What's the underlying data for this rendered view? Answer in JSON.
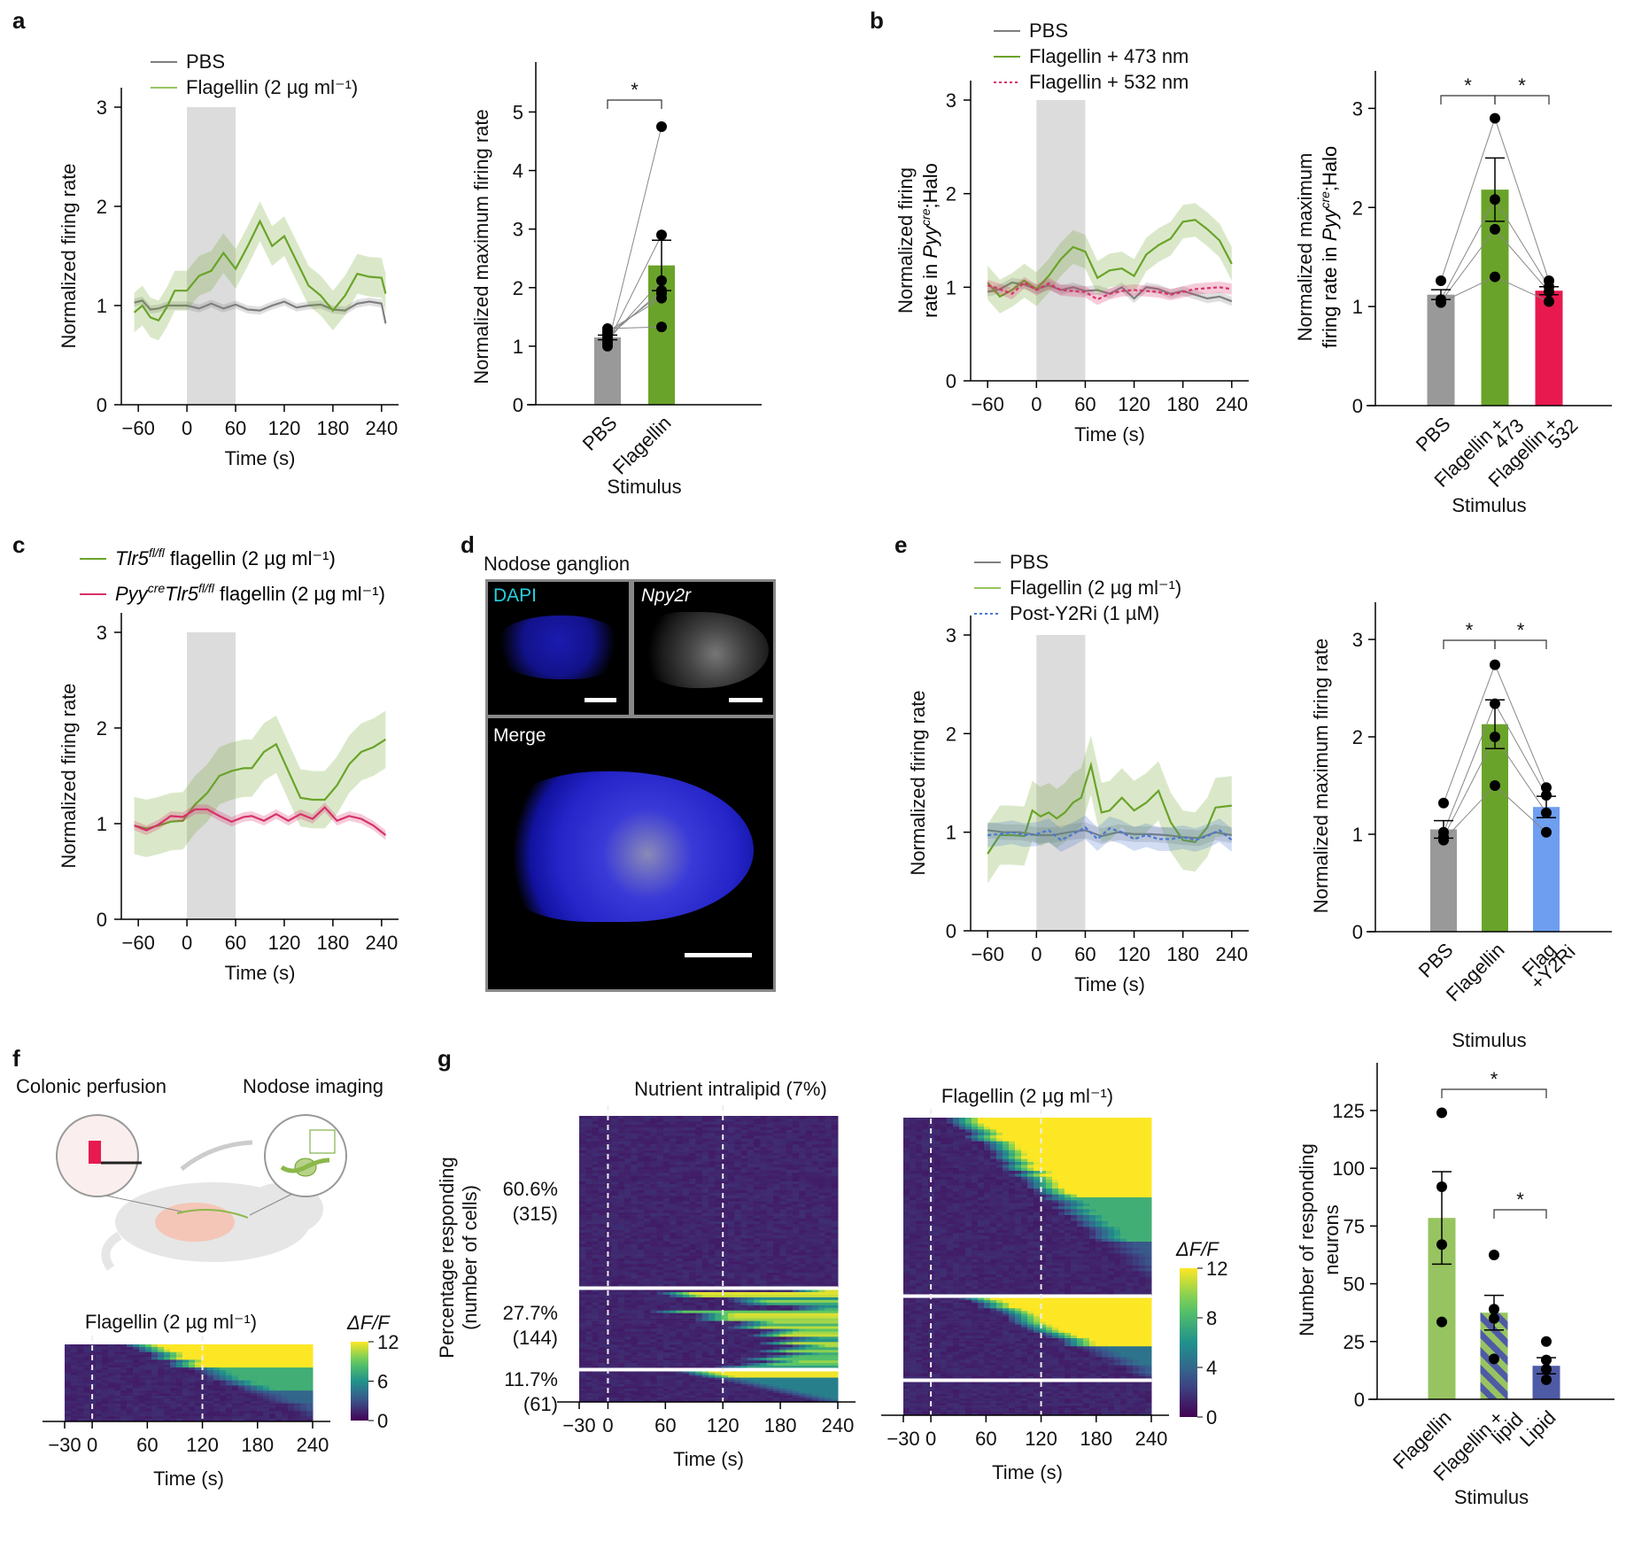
{
  "figure": {
    "panel_letters": [
      "a",
      "b",
      "c",
      "d",
      "e",
      "f",
      "g"
    ]
  },
  "colors": {
    "pbs": "#7f7f7f",
    "pbs_bar": "#999999",
    "flagellin": "#6aa329",
    "flagellin_light": "#97c460",
    "red": "#e8194f",
    "pink": "#d8316a",
    "blue_bar": "#6e9ef0",
    "blue_line": "#4a78d0",
    "lipid": "#4f5aa5",
    "stim_shade": "#dcdcdc"
  },
  "chart_data": [
    {
      "id": "a-left",
      "type": "line",
      "panel": "a",
      "xlabel": "Time (s)",
      "ylabel": "Normalized firing rate",
      "xlim": [
        -70,
        250
      ],
      "ylim": [
        0,
        3
      ],
      "xticks": [
        -60,
        0,
        60,
        120,
        180,
        240
      ],
      "yticks": [
        0,
        1,
        2,
        3
      ],
      "xtick_labels": [
        "−60",
        "0",
        "60",
        "120",
        "180",
        "240"
      ],
      "stimulus_window": [
        0,
        60
      ],
      "legend": [
        "PBS",
        "Flagellin (2 µg ml⁻¹)"
      ],
      "legend_position": "top",
      "series": [
        {
          "name": "PBS",
          "x": [
            -65,
            -55,
            -45,
            -35,
            -25,
            -15,
            0,
            15,
            30,
            45,
            60,
            75,
            90,
            105,
            120,
            135,
            150,
            165,
            180,
            195,
            210,
            225,
            240,
            245
          ],
          "y": [
            1.03,
            1.05,
            0.96,
            0.97,
            1.0,
            1.0,
            1.0,
            0.97,
            1.02,
            0.97,
            1.01,
            0.96,
            0.95,
            1.0,
            1.04,
            0.98,
            1.0,
            1.01,
            0.96,
            0.95,
            1.02,
            1.04,
            1.02,
            0.82
          ],
          "err": 0.04
        },
        {
          "name": "Flagellin (2 µg ml⁻¹)",
          "x": [
            -65,
            -55,
            -45,
            -35,
            -25,
            -15,
            0,
            15,
            30,
            45,
            60,
            75,
            90,
            105,
            120,
            135,
            150,
            165,
            180,
            195,
            210,
            225,
            240,
            245
          ],
          "y": [
            0.93,
            1.0,
            0.88,
            0.85,
            0.98,
            1.15,
            1.15,
            1.3,
            1.35,
            1.53,
            1.37,
            1.6,
            1.85,
            1.6,
            1.7,
            1.45,
            1.2,
            1.1,
            0.95,
            1.1,
            1.32,
            1.29,
            1.28,
            1.12
          ],
          "err": 0.2
        }
      ]
    },
    {
      "id": "a-right",
      "type": "bar",
      "panel": "a",
      "categories": [
        "PBS",
        "Flagellin"
      ],
      "values": [
        1.15,
        2.38
      ],
      "sem": [
        0.04,
        0.43
      ],
      "points": [
        [
          1.0,
          1.05,
          1.1,
          1.15,
          1.2,
          1.25,
          1.3
        ],
        [
          4.75,
          2.9,
          2.12,
          1.95,
          1.9,
          1.82,
          1.33
        ]
      ],
      "xlabel": "Stimulus",
      "ylabel": "Normalized maximum firing rate",
      "ylim": [
        0,
        5.4
      ],
      "yticks": [
        0,
        1,
        2,
        3,
        4,
        5
      ],
      "significance": [
        {
          "pair": [
            0,
            1
          ],
          "label": "*"
        }
      ]
    },
    {
      "id": "b-left",
      "type": "line",
      "panel": "b",
      "xlabel": "Time (s)",
      "ylabel_line1": "Normalized firing",
      "ylabel_line2_prefix": "rate in ",
      "ylabel_italic": "Pyy",
      "ylabel_sup": "cre",
      "ylabel_suffix": ";Halo",
      "xlim": [
        -70,
        250
      ],
      "ylim": [
        0,
        3
      ],
      "xticks": [
        -60,
        0,
        60,
        120,
        180,
        240
      ],
      "yticks": [
        0,
        1,
        2,
        3
      ],
      "xtick_labels": [
        "−60",
        "0",
        "60",
        "120",
        "180",
        "240"
      ],
      "stimulus_window": [
        0,
        60
      ],
      "legend": [
        "PBS",
        "Flagellin + 473 nm",
        "Flagellin + 532 nm"
      ],
      "legend_position": "top",
      "series": [
        {
          "name": "PBS",
          "x": [
            -60,
            -45,
            -30,
            -15,
            0,
            15,
            30,
            45,
            60,
            75,
            90,
            105,
            120,
            135,
            150,
            165,
            180,
            195,
            210,
            225,
            240
          ],
          "y": [
            0.95,
            0.98,
            1.05,
            1.03,
            0.98,
            1.02,
            0.97,
            1.0,
            0.96,
            0.97,
            0.93,
            1.0,
            0.88,
            1.0,
            0.98,
            0.93,
            0.96,
            0.92,
            0.88,
            0.9,
            0.85
          ],
          "err": 0.05
        },
        {
          "name": "Flagellin + 473 nm",
          "x": [
            -60,
            -45,
            -30,
            -15,
            0,
            15,
            30,
            45,
            60,
            75,
            90,
            105,
            120,
            135,
            150,
            165,
            180,
            195,
            210,
            225,
            240
          ],
          "y": [
            1.05,
            0.9,
            0.97,
            1.07,
            0.98,
            1.12,
            1.3,
            1.43,
            1.38,
            1.1,
            1.18,
            1.2,
            1.12,
            1.35,
            1.45,
            1.52,
            1.7,
            1.72,
            1.62,
            1.5,
            1.25
          ],
          "err": 0.18
        },
        {
          "name": "Flagellin + 532 nm",
          "x": [
            -60,
            -45,
            -30,
            -15,
            0,
            15,
            30,
            45,
            60,
            75,
            90,
            105,
            120,
            135,
            150,
            165,
            180,
            195,
            210,
            225,
            240
          ],
          "y": [
            1.02,
            0.98,
            0.93,
            1.05,
            0.97,
            1.04,
            0.97,
            0.96,
            0.95,
            0.87,
            0.93,
            0.96,
            0.97,
            0.96,
            0.95,
            0.92,
            0.95,
            0.98,
            0.99,
            1.0,
            0.98
          ],
          "err": 0.06,
          "dashed": true
        }
      ]
    },
    {
      "id": "b-right",
      "type": "bar",
      "panel": "b",
      "categories": [
        "PBS",
        "Flagellin + 473",
        "Flagellin + 532"
      ],
      "category_lines": [
        [
          "PBS"
        ],
        [
          "Flagellin +",
          "473"
        ],
        [
          "Flagellin +",
          "532"
        ]
      ],
      "values": [
        1.12,
        2.18,
        1.16
      ],
      "sem": [
        0.05,
        0.32,
        0.04
      ],
      "points": [
        [
          1.26,
          1.07,
          1.05,
          1.04
        ],
        [
          2.9,
          2.08,
          1.78,
          1.3
        ],
        [
          1.26,
          1.2,
          1.15,
          1.05
        ]
      ],
      "xlabel": "Stimulus",
      "ylabel_line1": "Normalized maximum",
      "ylabel_line2_prefix": "firing rate in ",
      "ylabel_italic": "Pyy",
      "ylabel_sup": "cre",
      "ylabel_suffix": ";Halo",
      "ylim": [
        0,
        3.2
      ],
      "yticks": [
        0,
        1,
        2,
        3
      ],
      "significance": [
        {
          "pair": [
            0,
            1
          ],
          "label": "*"
        },
        {
          "pair": [
            1,
            2
          ],
          "label": "*"
        }
      ]
    },
    {
      "id": "c",
      "type": "line",
      "panel": "c",
      "xlabel": "Time (s)",
      "ylabel": "Normalized firing rate",
      "xlim": [
        -70,
        250
      ],
      "ylim": [
        0,
        3
      ],
      "xticks": [
        -60,
        0,
        60,
        120,
        180,
        240
      ],
      "yticks": [
        0,
        1,
        2,
        3
      ],
      "xtick_labels": [
        "−60",
        "0",
        "60",
        "120",
        "180",
        "240"
      ],
      "stimulus_window": [
        0,
        60
      ],
      "legend_items": [
        {
          "italic": "Tlr5",
          "sup": "fl/fl",
          "rest": " flagellin (2 µg ml⁻¹)"
        },
        {
          "italic": "Pyy",
          "sup": "cre",
          "italic2": "Tlr5",
          "sup2": "fl/fl",
          "rest": " flagellin (2 µg ml⁻¹)"
        }
      ],
      "legend_position": "top",
      "series": [
        {
          "name": "Tlr5 fl/fl flagellin (2 µg ml⁻¹)",
          "x": [
            -65,
            -50,
            -35,
            -20,
            -5,
            10,
            25,
            40,
            55,
            70,
            80,
            95,
            110,
            125,
            140,
            155,
            170,
            185,
            200,
            215,
            230,
            245
          ],
          "y": [
            0.98,
            0.95,
            0.98,
            1.02,
            1.03,
            1.2,
            1.32,
            1.5,
            1.55,
            1.58,
            1.58,
            1.75,
            1.83,
            1.55,
            1.27,
            1.25,
            1.25,
            1.4,
            1.62,
            1.75,
            1.8,
            1.88
          ],
          "err": 0.3
        },
        {
          "name": "PyyCreTlr5 fl/fl flagellin (2 µg ml⁻¹)",
          "x": [
            -65,
            -50,
            -35,
            -20,
            -5,
            10,
            25,
            40,
            55,
            70,
            80,
            95,
            110,
            125,
            140,
            155,
            170,
            185,
            200,
            215,
            230,
            245
          ],
          "y": [
            0.98,
            0.93,
            0.99,
            1.08,
            1.07,
            1.15,
            1.15,
            1.08,
            1.02,
            1.07,
            1.08,
            1.03,
            1.1,
            1.03,
            1.1,
            1.05,
            1.17,
            1.03,
            1.08,
            1.05,
            0.98,
            0.88
          ],
          "err": 0.05
        }
      ]
    },
    {
      "id": "e-left",
      "type": "line",
      "panel": "e",
      "xlabel": "Time (s)",
      "ylabel": "Normalized firing rate",
      "xlim": [
        -70,
        250
      ],
      "ylim": [
        0,
        3
      ],
      "xticks": [
        -60,
        0,
        60,
        120,
        180,
        240
      ],
      "yticks": [
        0,
        1,
        2,
        3
      ],
      "xtick_labels": [
        "−60",
        "0",
        "60",
        "120",
        "180",
        "240"
      ],
      "stimulus_window": [
        0,
        60
      ],
      "legend": [
        "PBS",
        "Flagellin (2 µg ml⁻¹)",
        "Post-Y2Ri (1 µM)"
      ],
      "legend_position": "top",
      "series": [
        {
          "name": "PBS",
          "x": [
            -60,
            -40,
            -20,
            0,
            20,
            40,
            60,
            80,
            100,
            120,
            140,
            160,
            180,
            200,
            220,
            240
          ],
          "y": [
            1.02,
            1.0,
            1.0,
            0.97,
            0.97,
            1.0,
            1.02,
            0.96,
            1.0,
            0.98,
            0.98,
            0.97,
            0.95,
            0.94,
            1.0,
            0.97
          ],
          "err": 0.08
        },
        {
          "name": "Flagellin (2 µg ml⁻¹)",
          "x": [
            -60,
            -45,
            -30,
            -15,
            -5,
            5,
            15,
            25,
            35,
            45,
            55,
            67,
            80,
            90,
            105,
            120,
            135,
            150,
            165,
            180,
            195,
            210,
            220,
            240
          ],
          "y": [
            0.78,
            0.97,
            0.97,
            0.96,
            1.22,
            1.16,
            1.2,
            1.14,
            1.2,
            1.3,
            1.35,
            1.68,
            1.2,
            1.22,
            1.35,
            1.22,
            1.3,
            1.42,
            1.1,
            0.92,
            0.9,
            1.05,
            1.25,
            1.27
          ],
          "err": 0.3
        },
        {
          "name": "Post-Y2Ri (1 µM)",
          "x": [
            -60,
            -45,
            -30,
            -15,
            0,
            15,
            30,
            45,
            60,
            75,
            90,
            105,
            120,
            135,
            150,
            165,
            180,
            195,
            210,
            225,
            240
          ],
          "y": [
            0.97,
            0.98,
            1.0,
            0.97,
            0.98,
            1.02,
            0.92,
            0.98,
            1.05,
            0.93,
            1.04,
            1.0,
            0.93,
            0.97,
            0.93,
            0.93,
            0.95,
            0.92,
            0.96,
            1.02,
            0.92
          ],
          "err": 0.12,
          "dashed": true
        }
      ]
    },
    {
      "id": "e-right",
      "type": "bar",
      "panel": "e",
      "categories": [
        "PBS",
        "Flagellin",
        "Flag +Y2Ri"
      ],
      "category_lines": [
        [
          "PBS"
        ],
        [
          "Flagellin"
        ],
        [
          "Flag",
          "+Y2Ri"
        ]
      ],
      "values": [
        1.05,
        2.13,
        1.28
      ],
      "sem": [
        0.09,
        0.25,
        0.11
      ],
      "points": [
        [
          1.32,
          1.02,
          0.97,
          0.94
        ],
        [
          2.74,
          2.34,
          2.0,
          1.5
        ],
        [
          1.48,
          1.4,
          1.22,
          1.02
        ]
      ],
      "xlabel": "Stimulus",
      "ylabel": "Normalized maximum firing rate",
      "ylim": [
        0,
        3.2
      ],
      "yticks": [
        0,
        1,
        2,
        3
      ],
      "significance": [
        {
          "pair": [
            0,
            1
          ],
          "label": "*"
        },
        {
          "pair": [
            1,
            2
          ],
          "label": "*"
        }
      ]
    },
    {
      "id": "f-heatmap",
      "type": "heatmap",
      "panel": "f",
      "title": "Flagellin (2 µg ml⁻¹)",
      "xlabel": "Time (s)",
      "xlim": [
        -30,
        240
      ],
      "xticks": [
        -30,
        0,
        60,
        120,
        180,
        240
      ],
      "xtick_labels": [
        "−30",
        "0",
        "60",
        "120",
        "180",
        "240"
      ],
      "vlines": [
        0,
        120
      ],
      "colorbar": {
        "label": "ΔF/F",
        "ticks": [
          0,
          6,
          12
        ],
        "range": [
          0,
          12
        ]
      },
      "rows": 30
    },
    {
      "id": "g-lipid",
      "type": "heatmap",
      "panel": "g",
      "title": "Nutrient intralipid (7%)",
      "xlabel": "Time (s)",
      "ylabel_line1": "Percentage responding",
      "ylabel_line2": "(number of cells)",
      "xlim": [
        -30,
        240
      ],
      "xticks": [
        -30,
        0,
        60,
        120,
        180,
        240
      ],
      "xtick_labels": [
        "−30",
        "0",
        "60",
        "120",
        "180",
        "240"
      ],
      "vlines": [
        0,
        120
      ],
      "groups": [
        {
          "percent": "60.6%",
          "count": "(315)",
          "fraction": 0.606
        },
        {
          "percent": "27.7%",
          "count": "(144)",
          "fraction": 0.277
        },
        {
          "percent": "11.7%",
          "count": "(61)",
          "fraction": 0.117
        }
      ]
    },
    {
      "id": "g-flagellin",
      "type": "heatmap",
      "panel": "g",
      "title": "Flagellin (2 µg ml⁻¹)",
      "xlabel": "Time (s)",
      "xlim": [
        -30,
        240
      ],
      "xticks": [
        -30,
        0,
        60,
        120,
        180,
        240
      ],
      "xtick_labels": [
        "−30",
        "0",
        "60",
        "120",
        "180",
        "240"
      ],
      "vlines": [
        0,
        120
      ],
      "colorbar": {
        "label": "ΔF/F",
        "ticks": [
          0,
          4,
          8,
          12
        ],
        "range": [
          0,
          12
        ]
      }
    },
    {
      "id": "g-bar",
      "type": "bar",
      "panel": "g",
      "categories": [
        "Flagellin",
        "Flagellin + lipid",
        "Lipid"
      ],
      "category_lines": [
        [
          "Flagellin"
        ],
        [
          "Flagellin +",
          "lipid"
        ],
        [
          "Lipid"
        ]
      ],
      "values": [
        78.5,
        37.5,
        14.5
      ],
      "sem": [
        20,
        7.5,
        3.5
      ],
      "points": [
        [
          124,
          92,
          67,
          33.5
        ],
        [
          62.5,
          39,
          35,
          17.5
        ],
        [
          25,
          17,
          13,
          8.5
        ]
      ],
      "xlabel": "Stimulus",
      "ylabel_line1": "Number of responding",
      "ylabel_line2": "neurons",
      "ylim": [
        0,
        138
      ],
      "yticks": [
        0,
        25,
        50,
        75,
        100,
        125
      ],
      "significance": [
        {
          "pair": [
            0,
            2
          ],
          "label": "*"
        },
        {
          "pair": [
            1,
            2
          ],
          "label": "*"
        }
      ]
    }
  ],
  "panel_d": {
    "title": "Nodose ganglion",
    "dapi_label": "DAPI",
    "npy2r_label": "Npy2r",
    "merge_label": "Merge"
  },
  "panel_f_schematic": {
    "left_label": "Colonic perfusion",
    "right_label": "Nodose imaging"
  }
}
